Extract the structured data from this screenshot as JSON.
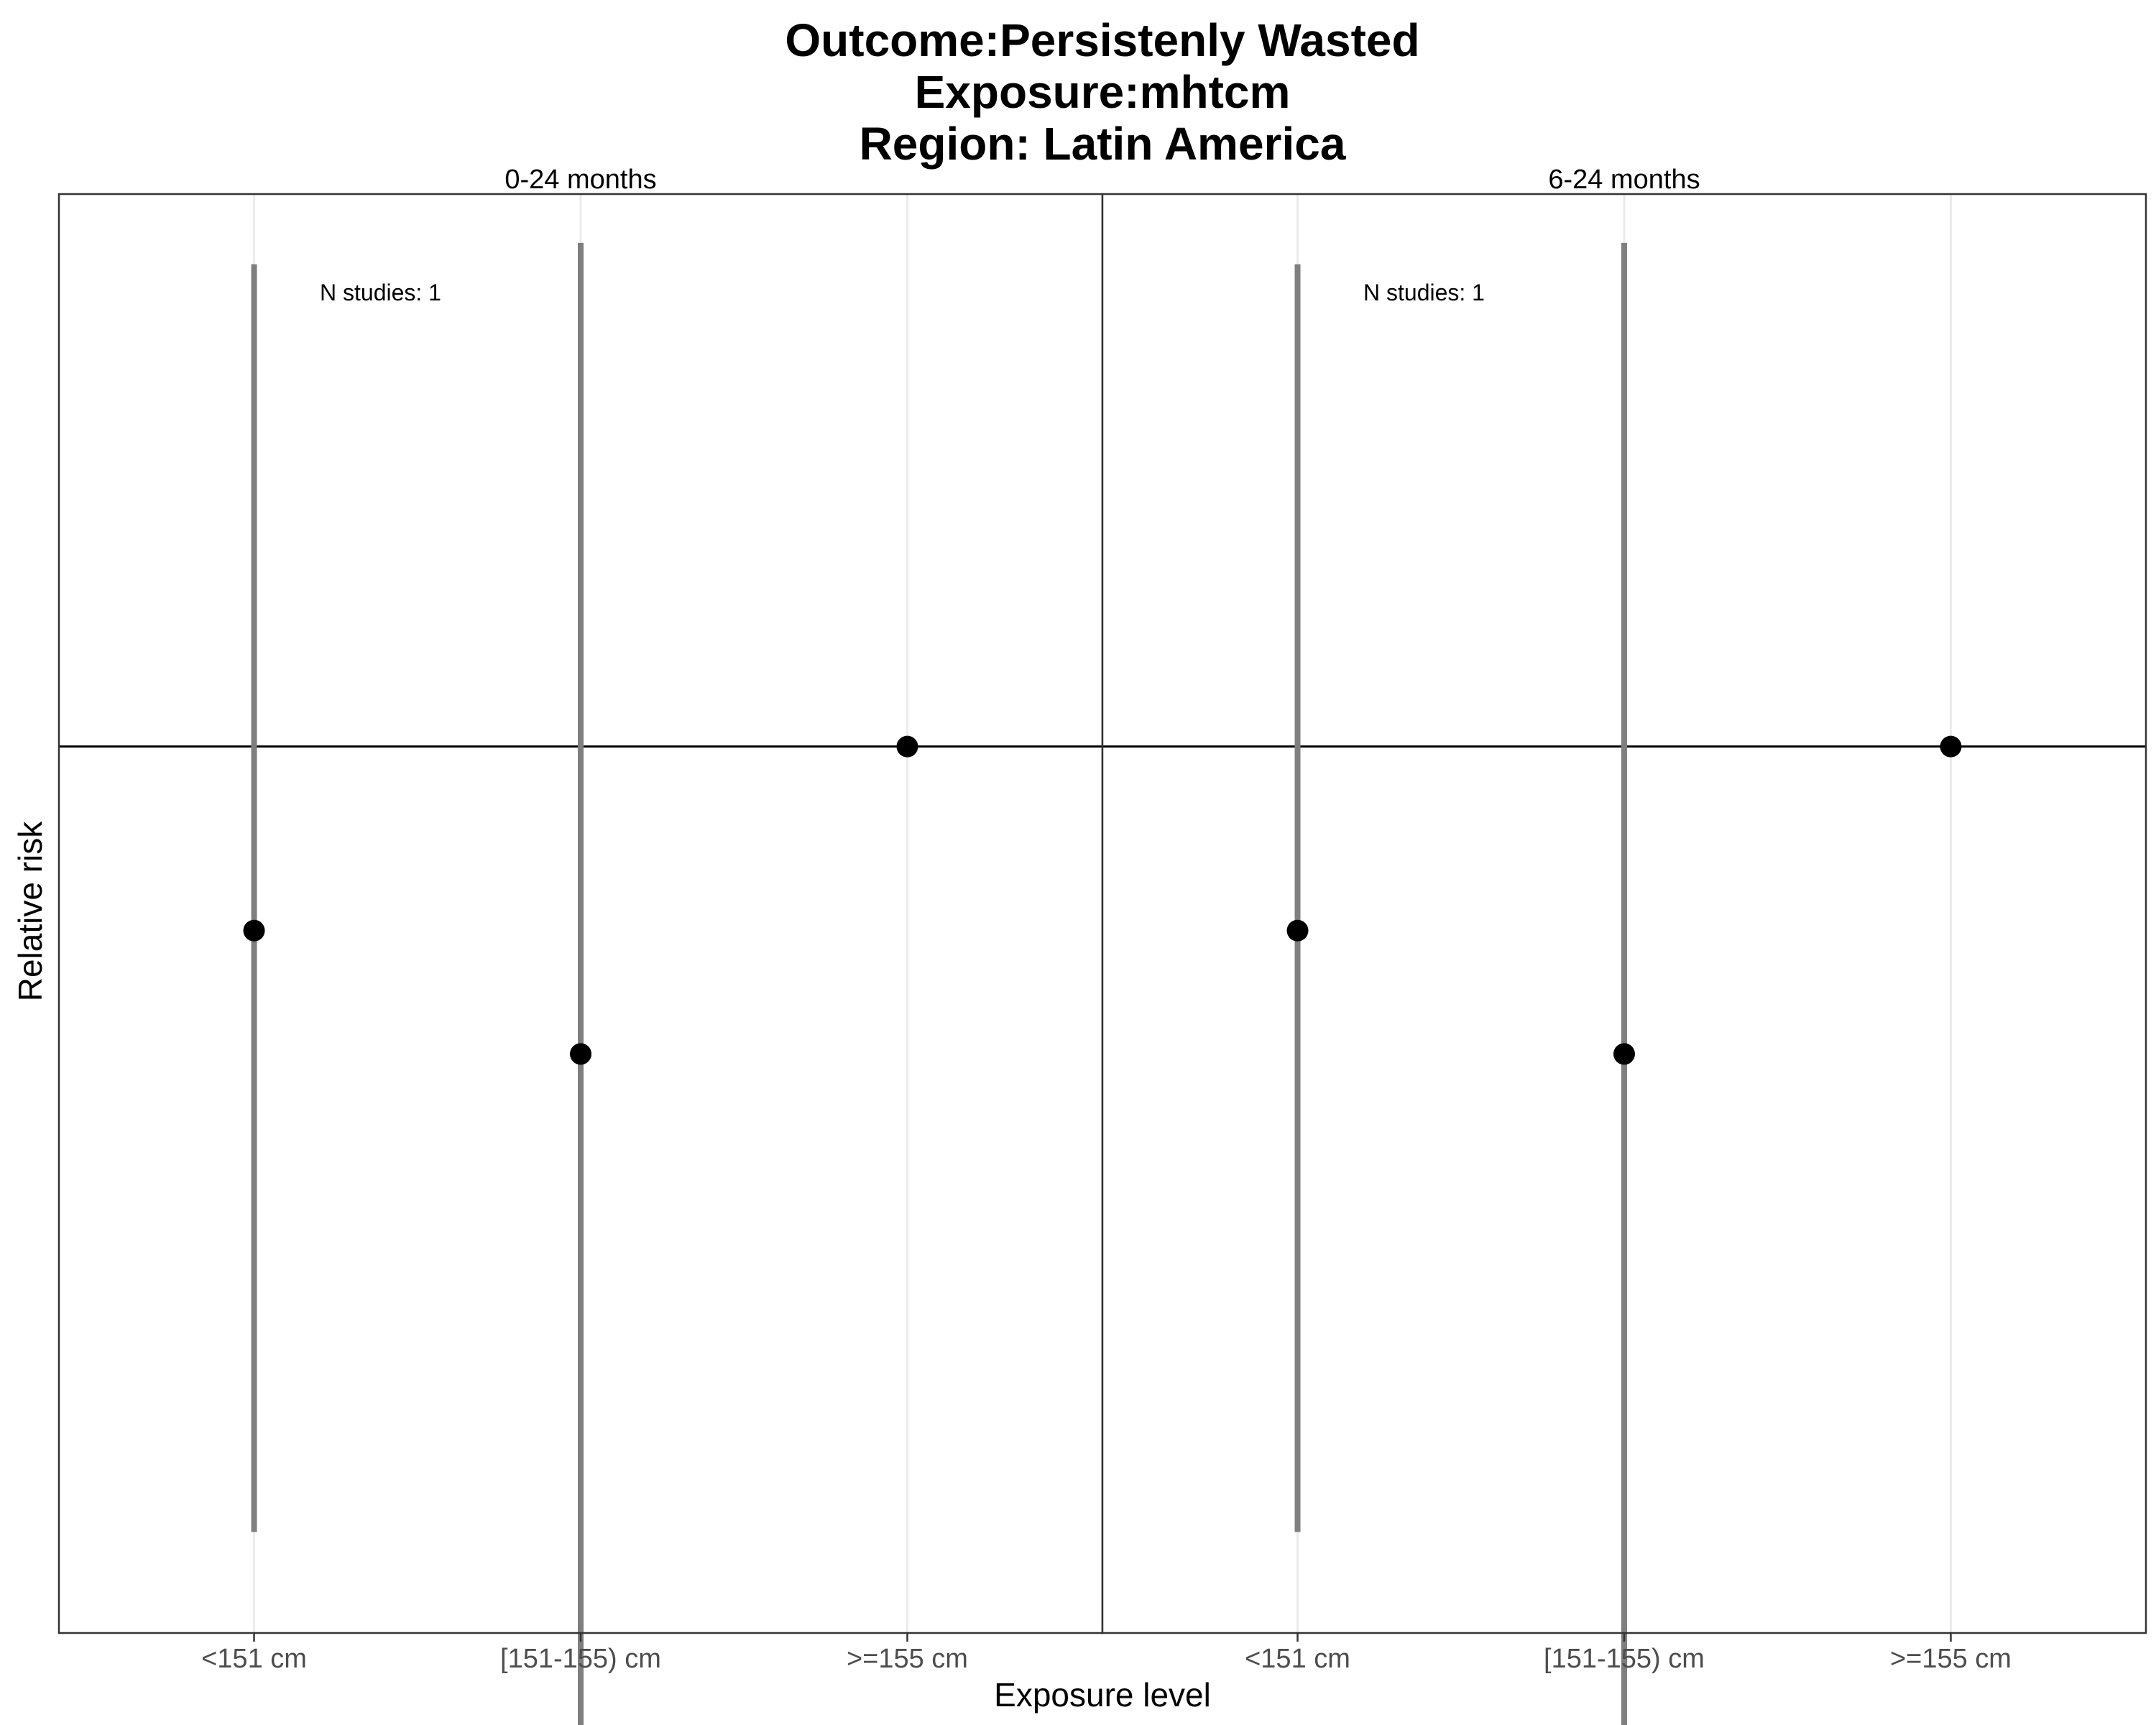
{
  "chart_data": {
    "type": "scatter",
    "title_lines": [
      "Outcome:Persistenly Wasted",
      "Exposure:mhtcm",
      "Region: Latin America"
    ],
    "xlabel": "Exposure level",
    "ylabel": "Relative risk",
    "categories": [
      "<151 cm",
      "[151-155) cm",
      ">=155 cm"
    ],
    "reference_line": 1,
    "ylim": [
      0.1,
      4.2
    ],
    "y_scale": "log",
    "y_tick_labels_shown": false,
    "grid": "vertical-major",
    "colors": {
      "point": "#000000",
      "error_bar": "#7f7f7f",
      "reference": "#000000",
      "grid": "#ebebeb"
    },
    "facets": [
      {
        "label": "0-24 months",
        "annotation": "N studies: 1",
        "points": [
          {
            "category": "<151 cm",
            "estimate": 0.62,
            "ci_low": 0.13,
            "ci_high": 3.5
          },
          {
            "category": "[151-155) cm",
            "estimate": 0.45,
            "ci_low": 0.07,
            "ci_high": 3.7
          },
          {
            "category": ">=155 cm",
            "estimate": 1.0
          }
        ]
      },
      {
        "label": "6-24 months",
        "annotation": "N studies: 1",
        "points": [
          {
            "category": "<151 cm",
            "estimate": 0.62,
            "ci_low": 0.13,
            "ci_high": 3.5
          },
          {
            "category": "[151-155) cm",
            "estimate": 0.45,
            "ci_low": 0.07,
            "ci_high": 3.7
          },
          {
            "category": ">=155 cm",
            "estimate": 1.0
          }
        ]
      }
    ]
  }
}
